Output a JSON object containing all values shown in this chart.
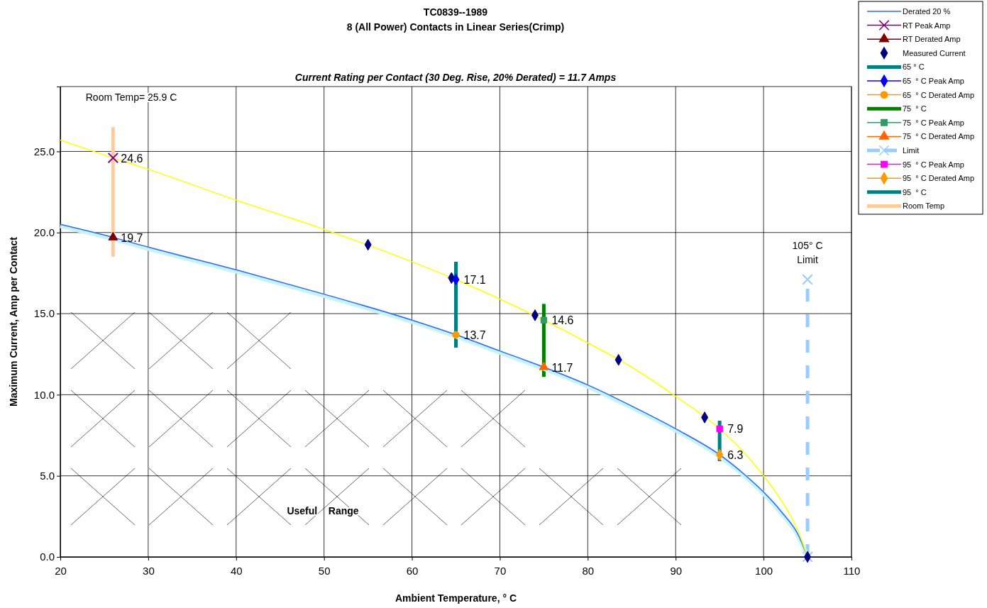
{
  "chart_data": {
    "type": "line",
    "title": "TC0839--1989\n8 (All Power) Contacts in Linear Series(Crimp)",
    "subtitle": "Current Rating per Contact (30 Deg. Rise, 20% Derated)  = 11.7 Amps",
    "xlabel": "Ambient Temperature,  ° C",
    "ylabel": "Maximum Current, Amp per Contact",
    "xlim": [
      20,
      110
    ],
    "xticks": [
      20,
      30,
      40,
      50,
      60,
      70,
      80,
      90,
      100,
      110
    ],
    "ylim": [
      0,
      29
    ],
    "yticks": [
      {
        "value": 0,
        "label": "0.0"
      },
      {
        "value": 5,
        "label": "5.0"
      },
      {
        "value": 10,
        "label": "10.0"
      },
      {
        "value": 15,
        "label": "15.0"
      },
      {
        "value": 20,
        "label": "20.0"
      },
      {
        "value": 25,
        "label": "25.0"
      }
    ],
    "grid": true,
    "legend": "top right",
    "annotations": [
      "Room Temp= 25.9 C",
      {
        "text": "105° C\nLimit",
        "x": 105,
        "y": 17.1
      },
      "Useful    Range"
    ],
    "series": [
      {
        "color": "#c6f4f8",
        "type": "line",
        "marker": "none",
        "x": [
          20,
          26,
          30,
          40,
          50,
          60,
          65,
          70,
          75,
          80,
          85,
          90,
          95,
          98,
          100,
          102,
          104,
          105
        ],
        "values": [
          20.4,
          19.6,
          19.0,
          17.6,
          16.1,
          14.5,
          13.6,
          12.6,
          11.6,
          10.5,
          9.2,
          7.8,
          6.2,
          4.9,
          3.9,
          2.7,
          1.2,
          0
        ]
      },
      {
        "name": "Derated 20 %",
        "color": "#3366ff",
        "type": "line",
        "marker": "none",
        "x": [
          20,
          26,
          30,
          40,
          50,
          60,
          65,
          70,
          75,
          80,
          85,
          90,
          95,
          98,
          100,
          102,
          104,
          105
        ],
        "values": [
          20.5,
          19.7,
          19.1,
          17.7,
          16.2,
          14.6,
          13.7,
          12.7,
          11.7,
          10.6,
          9.3,
          7.9,
          6.3,
          5.0,
          4.0,
          2.8,
          1.3,
          0
        ]
      },
      {
        "color": "#ffff00",
        "type": "line",
        "marker": "none",
        "x": [
          20,
          26,
          30,
          40,
          50,
          60,
          65,
          70,
          75,
          80,
          85,
          90,
          95,
          98,
          100,
          102,
          104,
          105
        ],
        "values": [
          25.7,
          24.6,
          23.9,
          22.0,
          20.2,
          18.2,
          17.1,
          15.9,
          14.6,
          13.2,
          11.7,
          9.9,
          7.9,
          6.3,
          5.0,
          3.5,
          1.5,
          0
        ]
      },
      {
        "name": "RT Peak Amp",
        "color": "#800080",
        "marker": "cross",
        "x": [
          26
        ],
        "values": [
          24.6
        ],
        "value_labels": [
          "24.6"
        ]
      },
      {
        "name": "RT Derated Amp",
        "color": "#800000",
        "type": "line",
        "marker": "triangle",
        "x": [
          26
        ],
        "values": [
          19.7
        ],
        "value_labels": [
          "19.7"
        ]
      },
      {
        "name": "Measured Current",
        "color": "#000080",
        "type": "scatter",
        "marker": "diamond",
        "x": [
          55,
          64.5,
          74,
          83.5,
          93.3,
          105
        ],
        "values": [
          19.25,
          17.2,
          14.9,
          12.15,
          8.6,
          0
        ]
      },
      {
        "name": "65 ° C",
        "color": "#008080",
        "type": "line",
        "marker": "none",
        "x": [
          65,
          65
        ],
        "values": [
          12.9,
          18.2
        ]
      },
      {
        "name": "65  ° C Peak Amp",
        "color": "#0000ff",
        "type": "line",
        "marker": "diamond",
        "x": [
          65
        ],
        "values": [
          17.1
        ],
        "value_labels": [
          "17.1"
        ]
      },
      {
        "name": "65  ° C Derated Amp",
        "color": "#ff9900",
        "type": "line",
        "marker": "circle",
        "x": [
          65
        ],
        "values": [
          13.7
        ],
        "value_labels": [
          "13.7"
        ]
      },
      {
        "name": "75  ° C",
        "color": "#008000",
        "type": "line",
        "marker": "none",
        "x": [
          75,
          75
        ],
        "values": [
          11.1,
          15.6
        ]
      },
      {
        "name": "75  ° C Peak Amp",
        "color": "#339966",
        "type": "line",
        "marker": "square",
        "x": [
          75
        ],
        "values": [
          14.6
        ],
        "value_labels": [
          "14.6"
        ]
      },
      {
        "name": "75  ° C Derated Amp",
        "color": "#ff6600",
        "type": "line",
        "marker": "triangle",
        "x": [
          75
        ],
        "values": [
          11.7
        ],
        "value_labels": [
          "11.7"
        ]
      },
      {
        "name": "Limit",
        "color": "#99ccff",
        "type": "line",
        "marker": "cross",
        "line_style": "dashed",
        "x": [
          105,
          105
        ],
        "values": [
          0,
          17.1
        ]
      },
      {
        "name": "95  ° C Peak Amp",
        "color": "#ff00ff",
        "type": "line",
        "marker": "square",
        "x": [
          95
        ],
        "values": [
          7.9
        ],
        "value_labels": [
          "7.9"
        ]
      },
      {
        "name": "95  ° C Derated Amp",
        "color": "#ff9900",
        "type": "line",
        "marker": "diamond",
        "x": [
          95
        ],
        "values": [
          6.3
        ],
        "value_labels": [
          "6.3"
        ]
      },
      {
        "name": "95  ° C",
        "color": "#008080",
        "type": "line",
        "marker": "none",
        "x": [
          95,
          95
        ],
        "values": [
          5.9,
          8.4
        ]
      },
      {
        "name": "Room Temp",
        "color": "#ffcc99",
        "type": "line",
        "marker": "none",
        "x": [
          26,
          26
        ],
        "values": [
          18.5,
          26.5
        ]
      }
    ]
  }
}
